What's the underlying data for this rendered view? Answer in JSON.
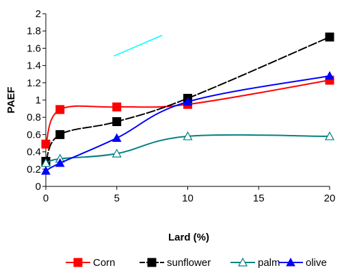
{
  "chart_data": {
    "type": "line",
    "xlabel": "Lard (%)",
    "ylabel": "PAEF",
    "xlim": [
      0,
      20
    ],
    "ylim": [
      0,
      2
    ],
    "xticks": [
      "0",
      "5",
      "10",
      "15",
      "20"
    ],
    "yticks": [
      "0",
      "0.2",
      "0.4",
      "0.6",
      "0.8",
      "1",
      "1.2",
      "1.4",
      "1.6",
      "1.8",
      "2"
    ],
    "grid": false,
    "legend_position": "bottom",
    "series": [
      {
        "name": "Corn",
        "color": "#ff0000",
        "marker": "square-filled",
        "x": [
          0,
          1,
          5,
          10,
          20
        ],
        "y": [
          0.49,
          0.89,
          0.92,
          0.95,
          1.23
        ]
      },
      {
        "name": "sunflower",
        "color": "#000000",
        "marker": "square-filled",
        "dashed": true,
        "x": [
          0,
          1,
          5,
          10,
          20
        ],
        "y": [
          0.29,
          0.6,
          0.75,
          1.02,
          1.73
        ]
      },
      {
        "name": "palm",
        "color": "#008080",
        "marker": "triangle-open",
        "x": [
          0,
          1,
          5,
          10,
          20
        ],
        "y": [
          0.27,
          0.32,
          0.38,
          0.58,
          0.58
        ]
      },
      {
        "name": "olive",
        "color": "#0000ff",
        "marker": "triangle-filled",
        "x": [
          0,
          1,
          5,
          10,
          20
        ],
        "y": [
          0.18,
          0.27,
          0.56,
          0.98,
          1.28
        ]
      }
    ],
    "annotation_line": {
      "color": "#00ffff",
      "x": [
        4.8,
        8.2
      ],
      "y": [
        1.51,
        1.75
      ]
    }
  }
}
